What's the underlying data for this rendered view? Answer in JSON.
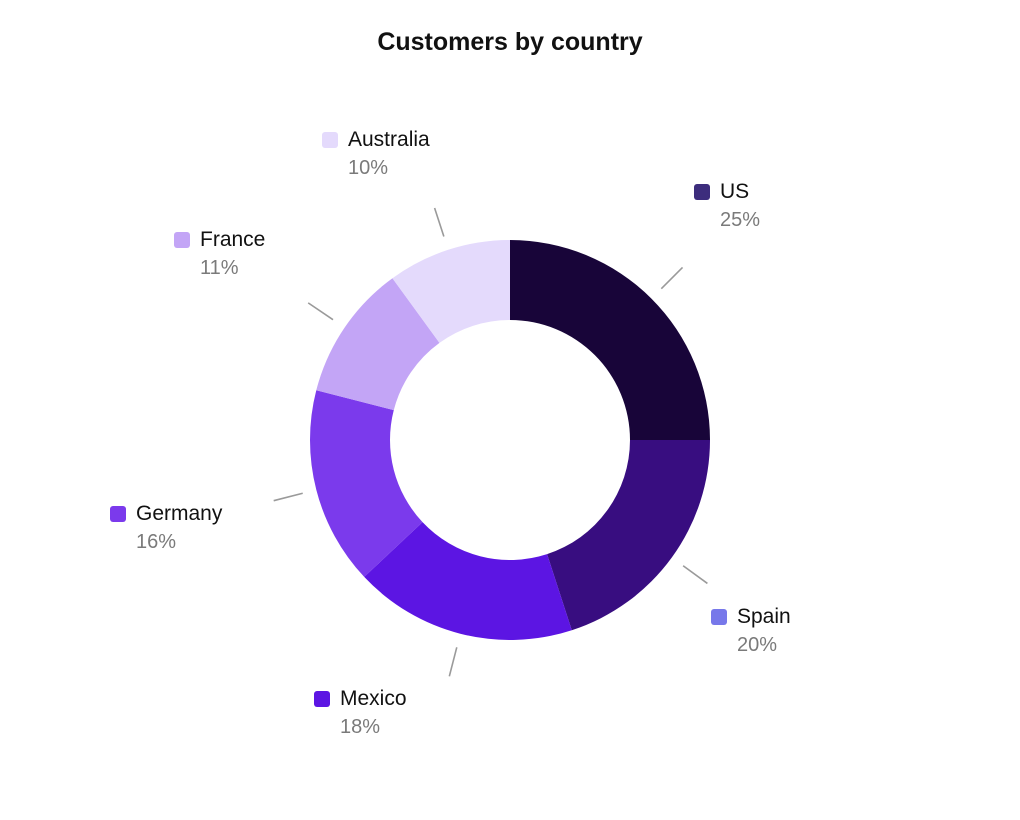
{
  "chart_data": {
    "type": "pie",
    "title": "Customers by country",
    "donut": true,
    "categories": [
      "US",
      "Spain",
      "Mexico",
      "Germany",
      "France",
      "Australia"
    ],
    "values": [
      25,
      20,
      18,
      16,
      11,
      10
    ],
    "value_labels": [
      "25%",
      "20%",
      "18%",
      "16%",
      "11%",
      "10%"
    ],
    "slice_colors": [
      "#180539",
      "#380d80",
      "#5c15e3",
      "#7b3aec",
      "#c3a5f6",
      "#e4dafc"
    ],
    "legend_colors": [
      "#3d2d7d",
      "#7778ea",
      "#5c15e3",
      "#7b3aec",
      "#c3a5f6",
      "#e4dafc"
    ],
    "leader_color": "#9a9a9a",
    "legend": "around-chart"
  }
}
